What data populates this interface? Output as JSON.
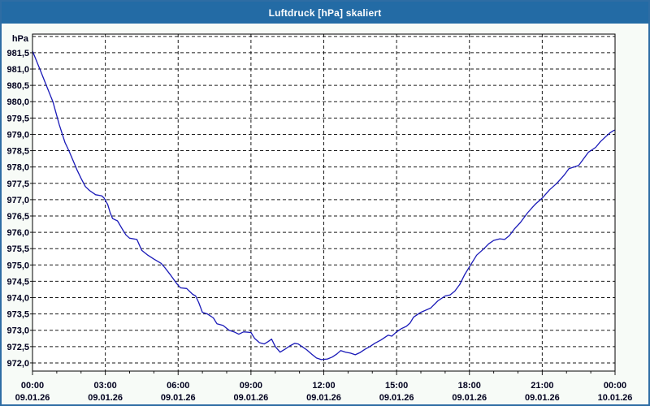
{
  "window": {
    "title": "Luftdruck [hPa] skaliert"
  },
  "chart_data": {
    "type": "line",
    "title": "Luftdruck [hPa] skaliert",
    "ylabel_unit": "hPa",
    "xlabel": "",
    "legend_position": "none",
    "grid": true,
    "xlim_hours": [
      0,
      24
    ],
    "ylim": [
      971.75,
      982.07
    ],
    "x_ticks": [
      {
        "h": 0,
        "time": "00:00",
        "date": "09.01.26"
      },
      {
        "h": 3,
        "time": "03:00",
        "date": "09.01.26"
      },
      {
        "h": 6,
        "time": "06:00",
        "date": "09.01.26"
      },
      {
        "h": 9,
        "time": "09:00",
        "date": "09.01.26"
      },
      {
        "h": 12,
        "time": "12:00",
        "date": "09.01.26"
      },
      {
        "h": 15,
        "time": "15:00",
        "date": "09.01.26"
      },
      {
        "h": 18,
        "time": "18:00",
        "date": "09.01.26"
      },
      {
        "h": 21,
        "time": "21:00",
        "date": "09.01.26"
      },
      {
        "h": 24,
        "time": "00:00",
        "date": "10.01.26"
      }
    ],
    "y_ticks": [
      {
        "value": 982.0,
        "label": ""
      },
      {
        "value": 981.5,
        "label": "981,5"
      },
      {
        "value": 981.0,
        "label": "981,0"
      },
      {
        "value": 980.5,
        "label": "980,5"
      },
      {
        "value": 980.0,
        "label": "980,0"
      },
      {
        "value": 979.5,
        "label": "979,5"
      },
      {
        "value": 979.0,
        "label": "979,0"
      },
      {
        "value": 978.5,
        "label": "978,5"
      },
      {
        "value": 978.0,
        "label": "978,0"
      },
      {
        "value": 977.5,
        "label": "977,5"
      },
      {
        "value": 977.0,
        "label": "977,0"
      },
      {
        "value": 976.5,
        "label": "976,5"
      },
      {
        "value": 976.0,
        "label": "976,0"
      },
      {
        "value": 975.5,
        "label": "975,5"
      },
      {
        "value": 975.0,
        "label": "975,0"
      },
      {
        "value": 974.5,
        "label": "974,5"
      },
      {
        "value": 974.0,
        "label": "974,0"
      },
      {
        "value": 973.5,
        "label": "973,5"
      },
      {
        "value": 973.0,
        "label": "973,0"
      },
      {
        "value": 972.5,
        "label": "972,5"
      },
      {
        "value": 972.0,
        "label": "972,0"
      }
    ],
    "series": [
      {
        "name": "Luftdruck",
        "points": [
          [
            0,
            981.55
          ],
          [
            0.3,
            981.0
          ],
          [
            0.57,
            980.5
          ],
          [
            0.84,
            980.0
          ],
          [
            1.1,
            979.3
          ],
          [
            1.34,
            978.75
          ],
          [
            1.5,
            978.5
          ],
          [
            1.67,
            978.2
          ],
          [
            1.84,
            977.9
          ],
          [
            2.0,
            977.65
          ],
          [
            2.18,
            977.4
          ],
          [
            2.35,
            977.28
          ],
          [
            2.6,
            977.15
          ],
          [
            2.85,
            977.12
          ],
          [
            2.95,
            977.05
          ],
          [
            3.1,
            976.85
          ],
          [
            3.2,
            976.6
          ],
          [
            3.3,
            976.42
          ],
          [
            3.5,
            976.35
          ],
          [
            3.7,
            976.1
          ],
          [
            3.85,
            975.92
          ],
          [
            4.0,
            975.82
          ],
          [
            4.3,
            975.78
          ],
          [
            4.5,
            975.45
          ],
          [
            4.75,
            975.3
          ],
          [
            5.0,
            975.18
          ],
          [
            5.3,
            975.05
          ],
          [
            5.45,
            974.92
          ],
          [
            5.7,
            974.68
          ],
          [
            5.95,
            974.42
          ],
          [
            6.1,
            974.3
          ],
          [
            6.35,
            974.28
          ],
          [
            6.6,
            974.1
          ],
          [
            6.72,
            974.05
          ],
          [
            6.85,
            973.85
          ],
          [
            7.0,
            973.55
          ],
          [
            7.2,
            973.5
          ],
          [
            7.45,
            973.38
          ],
          [
            7.6,
            973.2
          ],
          [
            7.85,
            973.15
          ],
          [
            8.1,
            973.0
          ],
          [
            8.3,
            972.95
          ],
          [
            8.5,
            972.88
          ],
          [
            8.7,
            972.95
          ],
          [
            9.0,
            972.93
          ],
          [
            9.15,
            972.75
          ],
          [
            9.35,
            972.62
          ],
          [
            9.55,
            972.58
          ],
          [
            9.7,
            972.65
          ],
          [
            9.85,
            972.73
          ],
          [
            10.0,
            972.5
          ],
          [
            10.2,
            972.33
          ],
          [
            10.4,
            972.42
          ],
          [
            10.6,
            972.52
          ],
          [
            10.8,
            972.6
          ],
          [
            10.95,
            972.58
          ],
          [
            11.1,
            972.5
          ],
          [
            11.3,
            972.4
          ],
          [
            11.5,
            972.27
          ],
          [
            11.7,
            972.15
          ],
          [
            11.9,
            972.1
          ],
          [
            12.15,
            972.12
          ],
          [
            12.35,
            972.18
          ],
          [
            12.55,
            972.28
          ],
          [
            12.7,
            972.38
          ],
          [
            12.9,
            972.33
          ],
          [
            13.1,
            972.3
          ],
          [
            13.3,
            972.25
          ],
          [
            13.5,
            972.32
          ],
          [
            13.7,
            972.42
          ],
          [
            13.9,
            972.5
          ],
          [
            14.1,
            972.6
          ],
          [
            14.35,
            972.7
          ],
          [
            14.65,
            972.85
          ],
          [
            14.8,
            972.82
          ],
          [
            15.0,
            972.95
          ],
          [
            15.2,
            973.05
          ],
          [
            15.4,
            973.12
          ],
          [
            15.55,
            973.22
          ],
          [
            15.7,
            973.4
          ],
          [
            16.0,
            973.55
          ],
          [
            16.4,
            973.68
          ],
          [
            16.7,
            973.9
          ],
          [
            17.0,
            974.05
          ],
          [
            17.2,
            974.08
          ],
          [
            17.4,
            974.2
          ],
          [
            17.6,
            974.4
          ],
          [
            17.8,
            974.7
          ],
          [
            18.05,
            975.0
          ],
          [
            18.3,
            975.3
          ],
          [
            18.6,
            975.5
          ],
          [
            18.8,
            975.65
          ],
          [
            19.0,
            975.75
          ],
          [
            19.25,
            975.8
          ],
          [
            19.45,
            975.78
          ],
          [
            19.65,
            975.9
          ],
          [
            19.85,
            976.1
          ],
          [
            20.1,
            976.3
          ],
          [
            20.4,
            976.6
          ],
          [
            20.7,
            976.85
          ],
          [
            21.0,
            977.05
          ],
          [
            21.3,
            977.3
          ],
          [
            21.6,
            977.5
          ],
          [
            21.9,
            977.75
          ],
          [
            22.1,
            977.95
          ],
          [
            22.3,
            978.0
          ],
          [
            22.5,
            978.05
          ],
          [
            22.7,
            978.25
          ],
          [
            22.9,
            978.45
          ],
          [
            23.2,
            978.6
          ],
          [
            23.4,
            978.78
          ],
          [
            23.6,
            978.92
          ],
          [
            23.8,
            979.05
          ],
          [
            23.95,
            979.12
          ],
          [
            24,
            979.13
          ]
        ]
      }
    ],
    "colors": {
      "line": "#1a1ab8",
      "grid": "#1a1a1a",
      "text": "#00001e",
      "plot_bg": "#ffffff",
      "titlebar_bg": "#236ba5",
      "window_bg": "#f7fbf7",
      "window_border": "#2e6da4"
    }
  }
}
